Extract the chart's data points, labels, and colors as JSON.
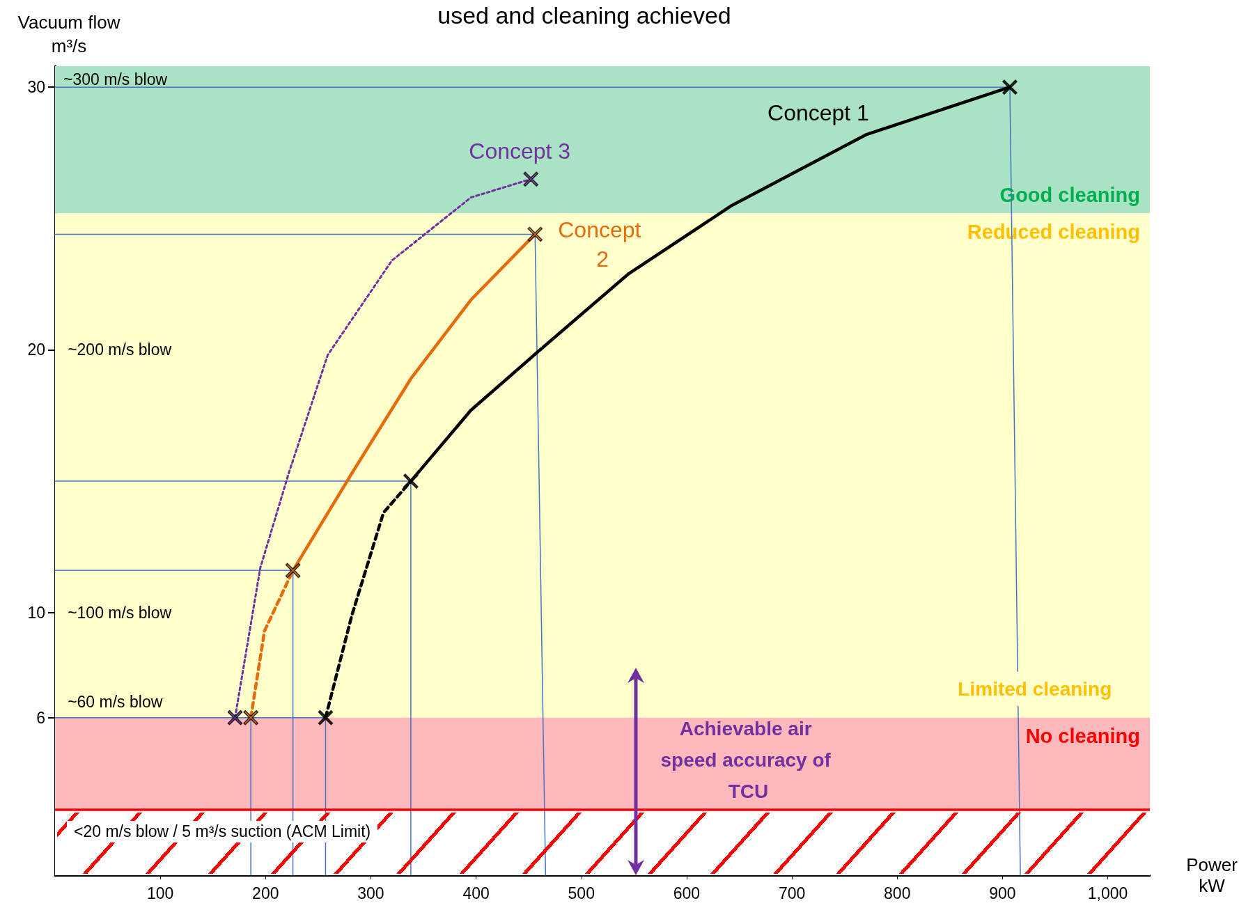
{
  "chart_data": {
    "type": "line",
    "title": "used and cleaning achieved",
    "xlabel": "Power kW",
    "ylabel": "Vacuum flow m³/s",
    "xlim": [
      0,
      1040
    ],
    "xticks": [
      100,
      200,
      300,
      400,
      500,
      600,
      700,
      800,
      900,
      {
        "value": 1000,
        "label": "1,000"
      }
    ],
    "ylim": [
      0,
      30.8
    ],
    "yticks": [
      6,
      10,
      20,
      30
    ],
    "series": [
      {
        "color": "#000000",
        "line_style": "dashed",
        "marker": "none",
        "x": [
          257,
          282,
          312,
          338
        ],
        "values": [
          6,
          9.9,
          13.8,
          15
        ]
      },
      {
        "name": "Concept 1",
        "color": "#000000",
        "line_style": "solid",
        "marker": "none",
        "x": [
          338,
          395,
          455,
          545,
          643,
          771,
          907
        ],
        "values": [
          15,
          17.7,
          19.8,
          22.9,
          25.5,
          28.2,
          30
        ]
      },
      {
        "color": "#e46c0a",
        "line_style": "dashed",
        "marker": "none",
        "x": [
          186,
          199,
          226
        ],
        "values": [
          6,
          9.3,
          11.6
        ]
      },
      {
        "name": "Concept 2",
        "color": "#e46c0a",
        "line_style": "solid",
        "marker": "none",
        "x": [
          226,
          282,
          338,
          395,
          456
        ],
        "values": [
          11.6,
          15.3,
          18.9,
          21.9,
          24.4
        ]
      },
      {
        "name": "Concept 3",
        "color": "#7030a0",
        "line_style": "dotted",
        "marker": "none",
        "x": [
          171,
          195,
          222,
          259,
          320,
          395,
          452
        ],
        "values": [
          6,
          11.7,
          15.3,
          19.8,
          23.4,
          25.8,
          26.5
        ]
      },
      {
        "type": "scatter",
        "marker": "cross",
        "x": [
          257,
          338,
          907,
          186,
          226,
          456,
          171,
          452
        ],
        "values": [
          6,
          15,
          30,
          6,
          11.6,
          24.4,
          6,
          26.5
        ],
        "colors": [
          "#000000",
          "#000000",
          "#000000",
          "#e46c0a",
          "#e46c0a",
          "#e46c0a",
          "#7030a0",
          "#7030a0"
        ]
      },
      {
        "color": "#4472c4",
        "line_style": "solid",
        "marker": "none",
        "x": [
          0,
          907,
          917
        ],
        "values": [
          30,
          30,
          0
        ]
      },
      {
        "color": "#4472c4",
        "line_style": "solid",
        "marker": "none",
        "x": [
          0,
          456,
          466
        ],
        "values": [
          24.4,
          24.4,
          0
        ]
      },
      {
        "color": "#4472c4",
        "line_style": "solid",
        "marker": "none",
        "x": [
          0,
          338,
          338
        ],
        "values": [
          15,
          15,
          0
        ]
      },
      {
        "color": "#4472c4",
        "line_style": "solid",
        "marker": "none",
        "x": [
          0,
          226,
          226
        ],
        "values": [
          11.6,
          11.6,
          0
        ]
      },
      {
        "color": "#4472c4",
        "line_style": "solid",
        "marker": "none",
        "x": [
          0,
          257
        ],
        "values": [
          6,
          6
        ]
      },
      {
        "color": "#4472c4",
        "line_style": "solid",
        "marker": "none",
        "x": [
          186,
          186
        ],
        "values": [
          6,
          0
        ]
      },
      {
        "color": "#4472c4",
        "line_style": "solid",
        "marker": "none",
        "x": [
          257,
          257
        ],
        "values": [
          6,
          0
        ]
      }
    ],
    "bands": [
      {
        "axis": "y",
        "from": 25.2,
        "to": 30.8,
        "color": "#a9e3c3",
        "label": "Good cleaning"
      },
      {
        "axis": "y",
        "from": 6,
        "to": 25.2,
        "color": "#ffffcc",
        "label": "Reduced cleaning"
      },
      {
        "axis": "y",
        "from": 2.5,
        "to": 6,
        "color": "#ffb9bc",
        "label": "No cleaning"
      },
      {
        "axis": "y",
        "from": 0,
        "to": 2.5,
        "color": "#ffffff",
        "label": "<20 m/s blow / 5 m³/s suction (ACM Limit)"
      }
    ],
    "ref_lines": [
      {
        "axis": "y",
        "value": 2.5,
        "color": "#ff0000",
        "line_style": "solid"
      }
    ],
    "annotations": [
      "~300 m/s blow",
      "~200 m/s blow",
      "~100 m/s blow",
      "~60 m/s blow",
      "Limited cleaning",
      "Achievable air speed accuracy of TCU"
    ],
    "grid": false
  }
}
